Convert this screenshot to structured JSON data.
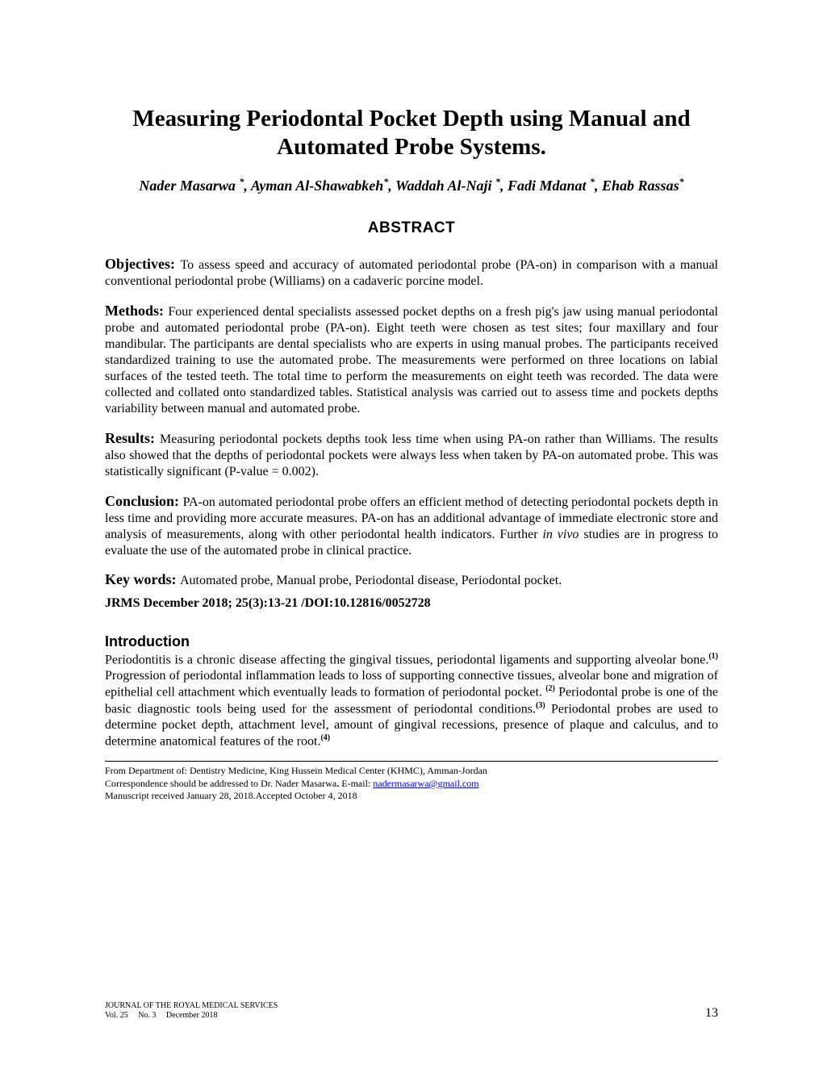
{
  "title": "Measuring Periodontal Pocket Depth using Manual and Automated Probe Systems.",
  "authors_line1": "Nader Masarwa ",
  "authors_sup1": "*",
  "authors_part2": ", Ayman Al-Shawabkeh",
  "authors_sup2": "*",
  "authors_part3": ", Waddah Al-Naji ",
  "authors_sup3": "*",
  "authors_part4": ", Fadi Mdanat ",
  "authors_sup4": "*",
  "authors_part5": ", Ehab Rassas",
  "authors_sup5": "*",
  "abstract_heading": "ABSTRACT",
  "objectives_label": "Objectives: ",
  "objectives_text": "To assess speed and accuracy of automated periodontal probe (PA-on) in comparison with a manual conventional periodontal probe (Williams) on a cadaveric porcine model.",
  "methods_label": "Methods: ",
  "methods_text": "Four experienced dental specialists assessed pocket depths on a fresh pig's jaw using manual periodontal probe and automated periodontal probe (PA-on). Eight teeth were chosen as test sites; four maxillary and four mandibular. The participants are dental specialists who are experts in using manual probes. The participants received standardized training to use the automated probe. The measurements were performed on three locations on labial surfaces of the tested teeth. The total time to perform the measurements on eight teeth was recorded. The data were collected and collated onto standardized tables. Statistical analysis was carried out to assess time and pockets depths variability between manual and automated probe.",
  "results_label": "Results: ",
  "results_text": "Measuring periodontal pockets depths took less time when using PA-on rather than Williams. The results also showed that the depths of periodontal pockets were always less when taken by PA-on automated probe. This was statistically significant (P-value = 0.002).",
  "conclusion_label": "Conclusion: ",
  "conclusion_text_part1": "PA-on automated periodontal probe offers an efficient method of detecting periodontal pockets depth in less time and providing more accurate measures. PA-on has an additional advantage of immediate electronic store and analysis of measurements, along with other periodontal health indicators. Further ",
  "conclusion_italic": "in vivo",
  "conclusion_text_part2": " studies are in progress to evaluate the use of the automated probe in clinical practice.",
  "keywords_label": "Key words: ",
  "keywords_text": "Automated probe, Manual probe, Periodontal disease, Periodontal pocket.",
  "jrms_line": "JRMS December 2018; 25(3):13-21 /DOI:10.12816/0052728",
  "intro_heading": "Introduction",
  "intro_text_p1": "Periodontitis is a chronic disease affecting the gingival tissues, periodontal ligaments and supporting alveolar bone.",
  "intro_sup1": "(1)",
  "intro_text_p2": " Progression of periodontal inflammation leads to loss of supporting connective tissues, alveolar bone and migration of epithelial cell attachment which eventually leads to formation of periodontal pocket. ",
  "intro_sup2": "(2)",
  "intro_text_p3": " Periodontal probe is one of the basic diagnostic tools being used for the assessment of periodontal conditions.",
  "intro_sup3": "(3)",
  "intro_text_p4": " Periodontal probes are used to determine pocket depth, attachment level, amount of gingival recessions, presence of plaque and calculus, and to determine anatomical features of the root.",
  "intro_sup4": "(4)",
  "footer_line1": "From Department of: Dentistry Medicine, King Hussein Medical Center (KHMC), Amman-Jordan",
  "footer_line2_label": "Correspondence should be addressed to Dr. Nader Masarwa",
  "footer_line2_bold": ".",
  "footer_line2_email_label": " E-mail: ",
  "footer_email": "nadermasarwa@gmail.com",
  "footer_line3": "Manuscript received January 28, 2018.Accepted October 4, 2018",
  "journal_name": "JOURNAL OF THE ROYAL MEDICAL SERVICES",
  "journal_vol": "Vol. 25     No. 3     December 2018",
  "page_number": "13"
}
